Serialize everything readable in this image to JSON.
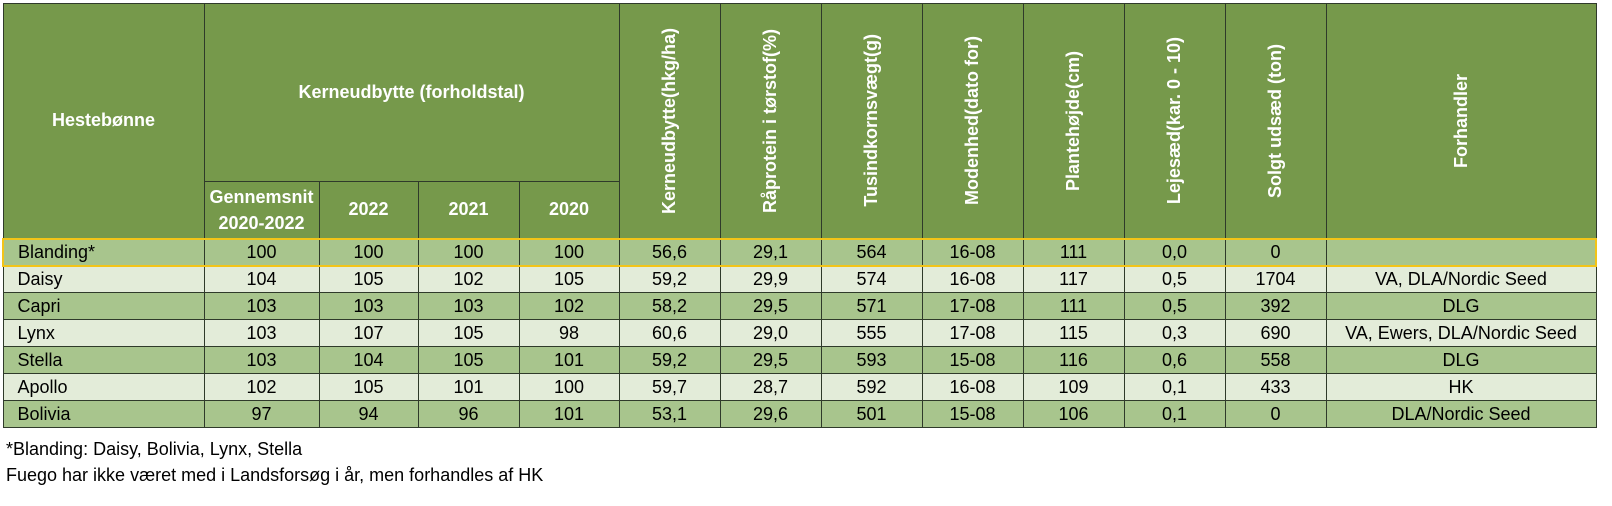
{
  "header": {
    "variety": "Hestebønne",
    "yield_group": "Kerneudbytte (forholdstal)",
    "avg_line1": "Gennemsnit",
    "avg_line2": "2020-2022",
    "y2022": "2022",
    "y2021": "2021",
    "y2020": "2020",
    "yield_hkg": "Kerneudbytte(hkg/ha)",
    "protein": "Råprotein i tørstof(%)",
    "tkw": "Tusindkornsvægt(g)",
    "maturity": "Modenhed(dato for)",
    "height": "Plantehøjde(cm)",
    "lodging": "Lejesæd(kar. 0 - 10)",
    "sold_seed": "Solgt udsæd (ton)",
    "dealer": "Forhandler"
  },
  "rows": [
    {
      "name": "Blanding*",
      "avg": "100",
      "y2022": "100",
      "y2021": "100",
      "y2020": "100",
      "yield": "56,6",
      "protein": "29,1",
      "tkw": "564",
      "maturity": "16-08",
      "height": "111",
      "lodging": "0,0",
      "sold": "0",
      "dealer": ""
    },
    {
      "name": "Daisy",
      "avg": "104",
      "y2022": "105",
      "y2021": "102",
      "y2020": "105",
      "yield": "59,2",
      "protein": "29,9",
      "tkw": "574",
      "maturity": "16-08",
      "height": "117",
      "lodging": "0,5",
      "sold": "1704",
      "dealer": "VA, DLA/Nordic Seed"
    },
    {
      "name": "Capri",
      "avg": "103",
      "y2022": "103",
      "y2021": "103",
      "y2020": "102",
      "yield": "58,2",
      "protein": "29,5",
      "tkw": "571",
      "maturity": "17-08",
      "height": "111",
      "lodging": "0,5",
      "sold": "392",
      "dealer": "DLG"
    },
    {
      "name": "Lynx",
      "avg": "103",
      "y2022": "107",
      "y2021": "105",
      "y2020": "98",
      "yield": "60,6",
      "protein": "29,0",
      "tkw": "555",
      "maturity": "17-08",
      "height": "115",
      "lodging": "0,3",
      "sold": "690",
      "dealer": "VA, Ewers, DLA/Nordic Seed"
    },
    {
      "name": "Stella",
      "avg": "103",
      "y2022": "104",
      "y2021": "105",
      "y2020": "101",
      "yield": "59,2",
      "protein": "29,5",
      "tkw": "593",
      "maturity": "15-08",
      "height": "116",
      "lodging": "0,6",
      "sold": "558",
      "dealer": "DLG"
    },
    {
      "name": "Apollo",
      "avg": "102",
      "y2022": "105",
      "y2021": "101",
      "y2020": "100",
      "yield": "59,7",
      "protein": "28,7",
      "tkw": "592",
      "maturity": "16-08",
      "height": "109",
      "lodging": "0,1",
      "sold": "433",
      "dealer": "HK"
    },
    {
      "name": "Bolivia",
      "avg": "97",
      "y2022": "94",
      "y2021": "96",
      "y2020": "101",
      "yield": "53,1",
      "protein": "29,6",
      "tkw": "501",
      "maturity": "15-08",
      "height": "106",
      "lodging": "0,1",
      "sold": "0",
      "dealer": "DLA/Nordic Seed"
    }
  ],
  "notes": {
    "line1": "*Blanding: Daisy, Bolivia, Lynx, Stella",
    "line2": "Fuego har ikke været med i Landsforsøg i år, men forhandles af HK"
  },
  "colors": {
    "header_bg": "#76994b",
    "row_dark": "#a8c58d",
    "row_light": "#e3ecd9",
    "highlight_border": "#f2c418"
  }
}
